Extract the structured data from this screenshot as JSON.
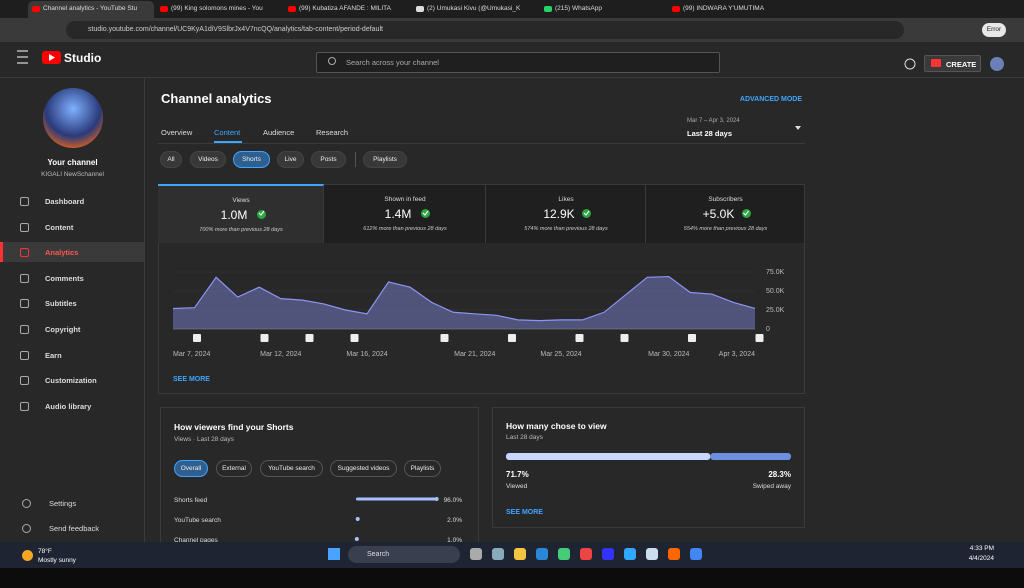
{
  "browser": {
    "tabs": [
      "Channel analytics - YouTube Stu",
      "(99) King solomons mines - You",
      "(99) Kubatiza AFANDE : MILITA",
      "(2) Umukasi Kivu (@Umukasi_K",
      "(215) WhatsApp",
      "(99) INDWARA Y'UMUTIMA"
    ],
    "url": "studio.youtube.com/channel/UC9KyA1diV9SlbrJx4V7ncQQ/analytics/tab-content/period-default",
    "profile": "Error"
  },
  "header": {
    "logo": "Studio",
    "search": "Search across your channel",
    "create": "CREATE"
  },
  "sidebar": {
    "title": "Your channel",
    "channel": "KIGALI NewSchannel",
    "nav": [
      "Dashboard",
      "Content",
      "Analytics",
      "Comments",
      "Subtitles",
      "Copyright",
      "Earn",
      "Customization",
      "Audio library"
    ],
    "bottom": [
      "Settings",
      "Send feedback"
    ]
  },
  "analytics": {
    "title": "Channel analytics",
    "advanced": "ADVANCED MODE",
    "tabs": [
      "Overview",
      "Content",
      "Audience",
      "Research"
    ],
    "date_range": "Mar 7 – Apr 3, 2024",
    "period": "Last 28 days",
    "filters": [
      "All",
      "Videos",
      "Shorts",
      "Live",
      "Posts",
      "Playlists"
    ]
  },
  "metrics": [
    {
      "label": "Views",
      "value": "1.0M",
      "change": "700% more than previous 28 days"
    },
    {
      "label": "Shown in feed",
      "value": "1.4M",
      "change": "612% more than previous 28 days"
    },
    {
      "label": "Likes",
      "value": "12.9K",
      "change": "574% more than previous 28 days"
    },
    {
      "label": "Subscribers",
      "value": "+5.0K",
      "change": "554% more than previous 28 days"
    }
  ],
  "chart_data": {
    "type": "area",
    "color": "#8c95f5",
    "categories": [
      "Mar 7, 2024",
      null,
      null,
      null,
      null,
      "Mar 12, 2024",
      null,
      null,
      null,
      "Mar 16, 2024",
      null,
      null,
      null,
      null,
      "Mar 21, 2024",
      null,
      null,
      null,
      "Mar 25, 2024",
      null,
      null,
      null,
      null,
      "Mar 30, 2024",
      null,
      null,
      null,
      "Apr 3, 2024"
    ],
    "values": [
      27000,
      28000,
      68000,
      42000,
      55000,
      40000,
      38000,
      33000,
      25000,
      20000,
      62000,
      55000,
      35000,
      22000,
      20000,
      18000,
      12000,
      11000,
      12000,
      12000,
      22000,
      45000,
      68000,
      69000,
      48000,
      46000,
      35000,
      27000
    ],
    "ylim": [
      0,
      75000
    ],
    "yticks": [
      0,
      {
        "value": 25000,
        "label": "25.0K"
      },
      {
        "value": 50000,
        "label": "50.0K"
      },
      {
        "value": 75000,
        "label": "75.0K"
      }
    ],
    "grid": true
  },
  "see_more": "SEE MORE",
  "find": {
    "title": "How viewers find your Shorts",
    "subtitle": "Views · Last 28 days",
    "chips": [
      "Overall",
      "External",
      "YouTube search",
      "Suggested videos",
      "Playlists"
    ],
    "rows": [
      {
        "label": "Shorts feed",
        "value": 96,
        "value_label": "96.0%"
      },
      {
        "label": "YouTube search",
        "value": 2,
        "value_label": "2.0%"
      },
      {
        "label": "Channel pages",
        "value": 1,
        "value_label": "1.0%"
      }
    ]
  },
  "chose": {
    "title": "How many chose to view",
    "subtitle": "Last 28 days",
    "viewed": 71.7,
    "viewed_label": "71.7%",
    "viewed_text": "Viewed",
    "swiped": 28.3,
    "swiped_label": "28.3%",
    "swiped_text": "Swiped away",
    "see_more": "SEE MORE"
  },
  "taskbar": {
    "temp": "78°F",
    "weather": "Mostly sunny",
    "search": "Search",
    "time": "4:33 PM",
    "date": "4/4/2024"
  }
}
